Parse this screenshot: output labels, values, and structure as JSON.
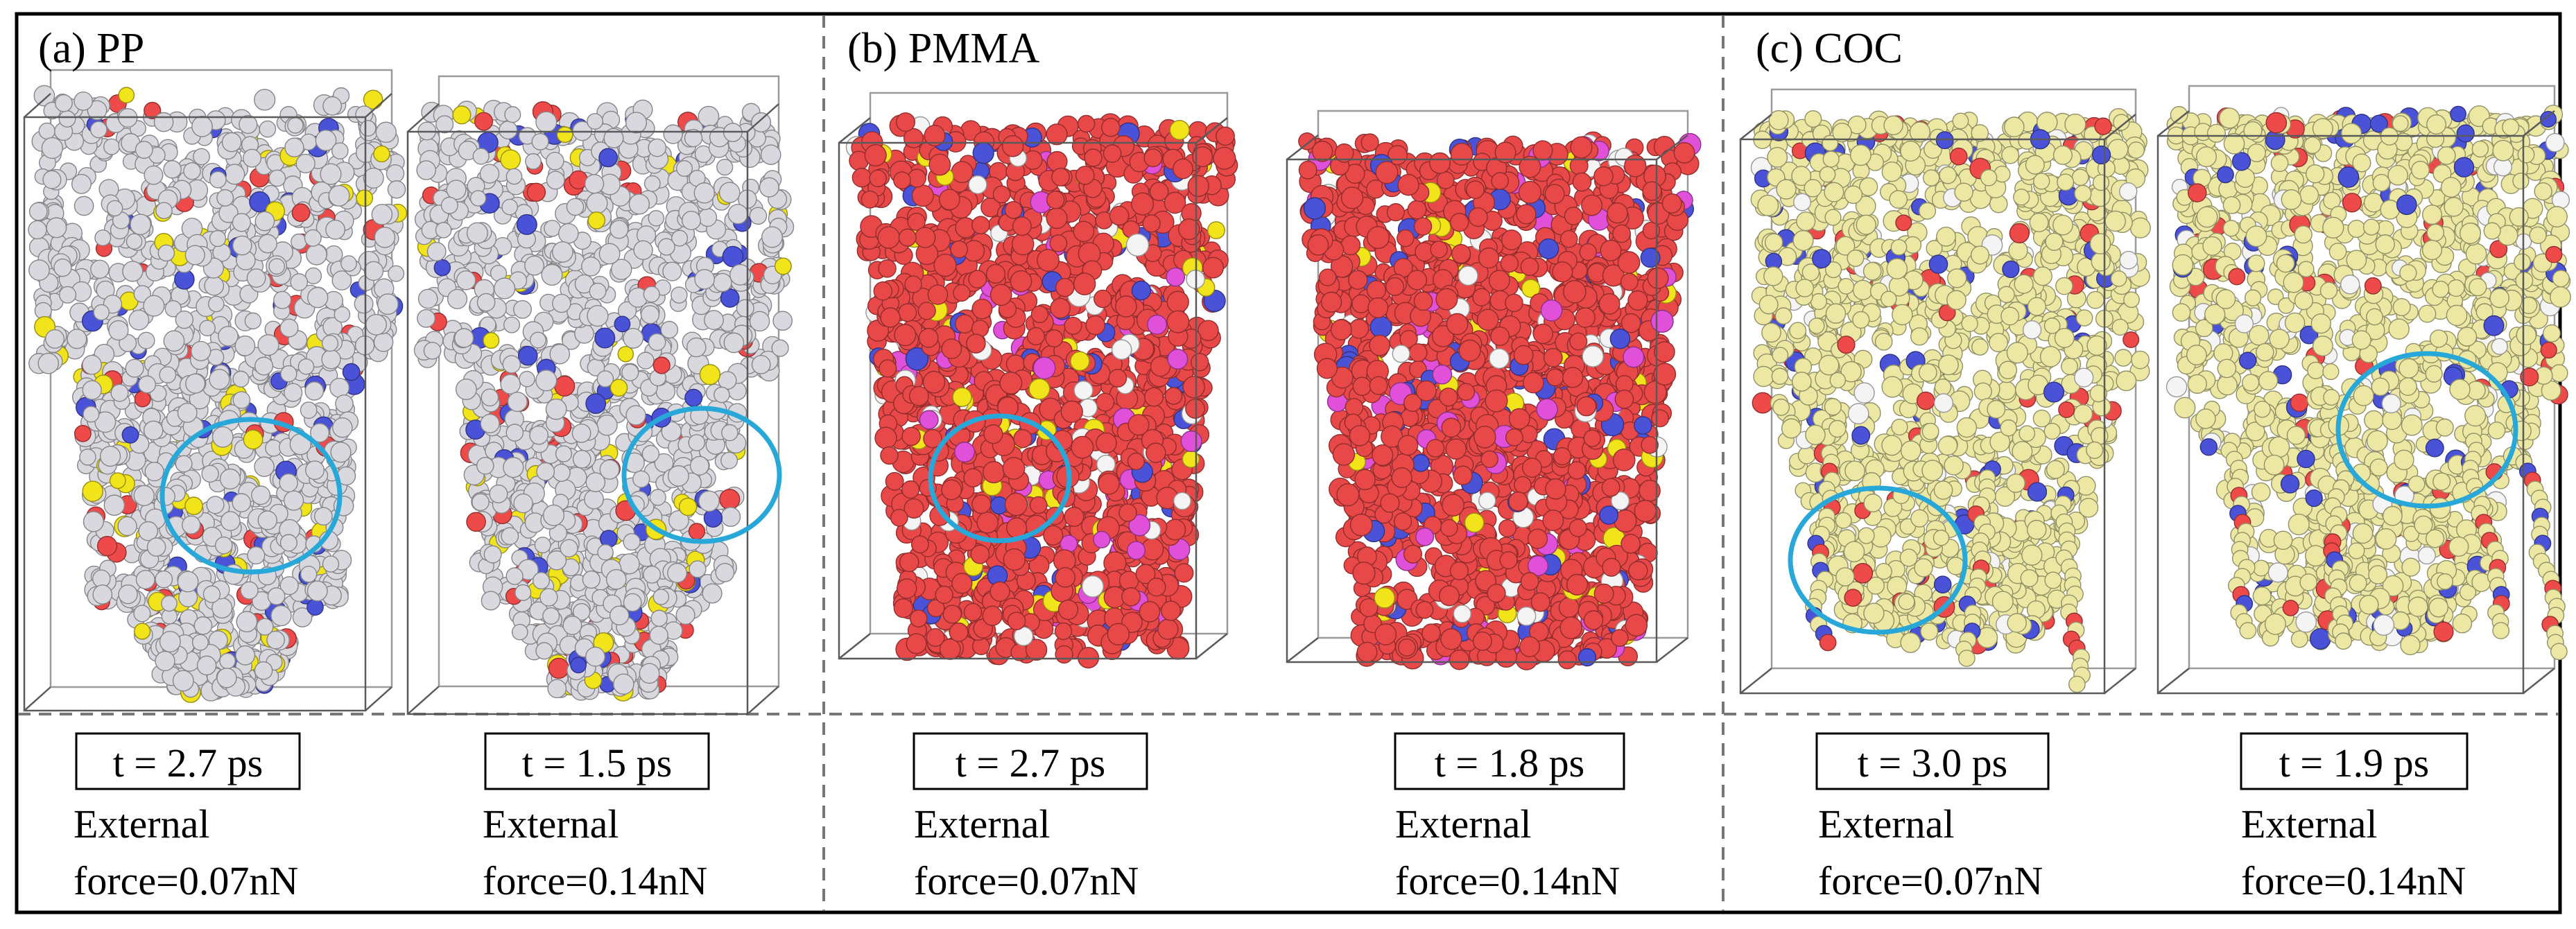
{
  "colors": {
    "pp_base": "#d8d8de",
    "pmma_base": "#e84848",
    "coc_base": "#ece8a4",
    "accent_blue": "#4a52d8",
    "accent_red": "#ee4a4a",
    "accent_yellow": "#f2e41a",
    "accent_magenta": "#e050d8",
    "accent_white": "#f4f4f4",
    "highlight_circle": "#28a8d8",
    "frame": "#000000",
    "divider": "#777777"
  },
  "panels": [
    {
      "title": "(a) PP",
      "material_color": "pp_base",
      "snapshots": [
        {
          "time": "t = 2.7 ps",
          "caption_line1": "External",
          "caption_line2": "force=0.07nN"
        },
        {
          "time": "t = 1.5 ps",
          "caption_line1": "External",
          "caption_line2": "force=0.14nN"
        }
      ]
    },
    {
      "title": "(b) PMMA",
      "material_color": "pmma_base",
      "snapshots": [
        {
          "time": "t = 2.7 ps",
          "caption_line1": "External",
          "caption_line2": "force=0.07nN"
        },
        {
          "time": "t = 1.8 ps",
          "caption_line1": "External",
          "caption_line2": "force=0.14nN"
        }
      ]
    },
    {
      "title": "(c) COC",
      "material_color": "coc_base",
      "snapshots": [
        {
          "time": "t = 3.0 ps",
          "caption_line1": "External",
          "caption_line2": "force=0.07nN"
        },
        {
          "time": "t = 1.9 ps",
          "caption_line1": "External",
          "caption_line2": "force=0.14nN"
        }
      ]
    }
  ]
}
